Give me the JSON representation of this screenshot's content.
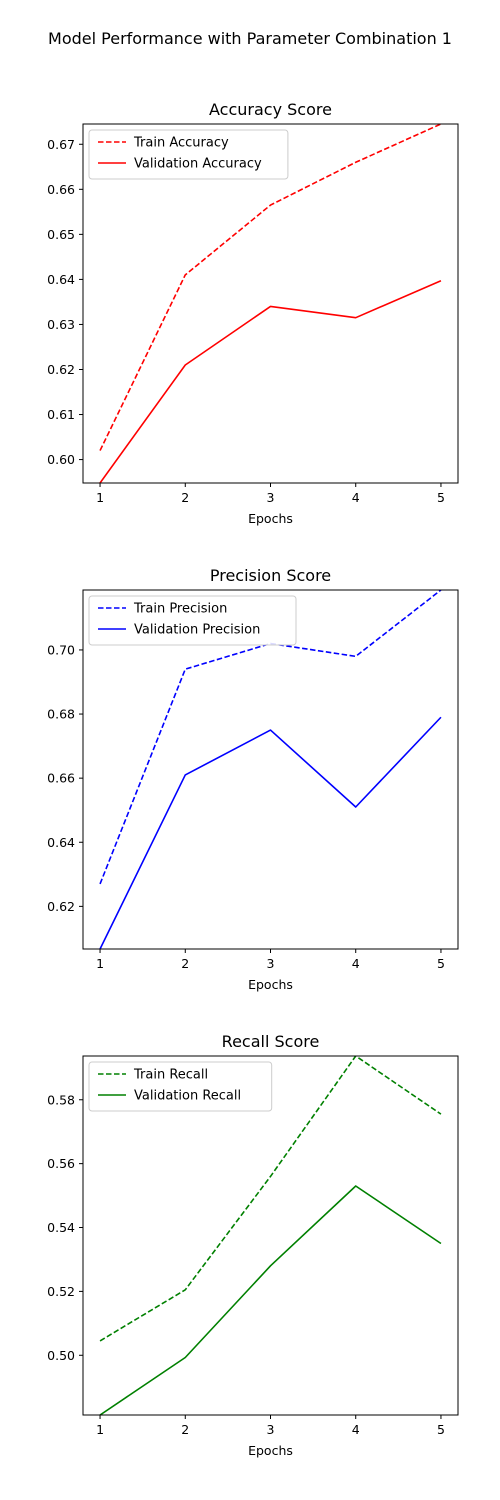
{
  "figure": {
    "title": "Model Performance with Parameter Combination 1"
  },
  "chart_data": [
    {
      "type": "line",
      "title": "Accuracy Score",
      "xlabel": "Epochs",
      "ylabel": "",
      "x": [
        1,
        2,
        3,
        4,
        5
      ],
      "xlim": [
        0.8,
        5.2
      ],
      "ylim": [
        0.5948,
        0.6745
      ],
      "yticks": [
        "0.60",
        "0.61",
        "0.62",
        "0.63",
        "0.64",
        "0.65",
        "0.66",
        "0.67"
      ],
      "ytick_values": [
        0.6,
        0.61,
        0.62,
        0.63,
        0.64,
        0.65,
        0.66,
        0.67
      ],
      "grid": false,
      "legend_position": "top-left",
      "series": [
        {
          "name": "Train Accuracy",
          "color": "#ff0000",
          "dash": true,
          "values": [
            0.602,
            0.641,
            0.6565,
            0.666,
            0.6745
          ]
        },
        {
          "name": "Validation Accuracy",
          "color": "#ff0000",
          "dash": false,
          "values": [
            0.5948,
            0.621,
            0.634,
            0.6315,
            0.6397
          ]
        }
      ]
    },
    {
      "type": "line",
      "title": "Precision Score",
      "xlabel": "Epochs",
      "ylabel": "",
      "x": [
        1,
        2,
        3,
        4,
        5
      ],
      "xlim": [
        0.8,
        5.2
      ],
      "ylim": [
        0.6067,
        0.7187
      ],
      "yticks": [
        "0.62",
        "0.64",
        "0.66",
        "0.68",
        "0.70"
      ],
      "ytick_values": [
        0.62,
        0.64,
        0.66,
        0.68,
        0.7
      ],
      "grid": false,
      "legend_position": "top-left",
      "series": [
        {
          "name": "Train Precision",
          "color": "#0000ff",
          "dash": true,
          "values": [
            0.627,
            0.694,
            0.702,
            0.698,
            0.7187
          ]
        },
        {
          "name": "Validation Precision",
          "color": "#0000ff",
          "dash": false,
          "values": [
            0.6067,
            0.661,
            0.675,
            0.651,
            0.679
          ]
        }
      ]
    },
    {
      "type": "line",
      "title": "Recall Score",
      "xlabel": "Epochs",
      "ylabel": "",
      "x": [
        1,
        2,
        3,
        4,
        5
      ],
      "xlim": [
        0.8,
        5.2
      ],
      "ylim": [
        0.4813,
        0.5937
      ],
      "yticks": [
        "0.50",
        "0.52",
        "0.54",
        "0.56",
        "0.58"
      ],
      "ytick_values": [
        0.5,
        0.52,
        0.54,
        0.56,
        0.58
      ],
      "grid": false,
      "legend_position": "top-left",
      "series": [
        {
          "name": "Train Recall",
          "color": "#008000",
          "dash": true,
          "values": [
            0.5045,
            0.5205,
            0.556,
            0.5937,
            0.5755
          ]
        },
        {
          "name": "Validation Recall",
          "color": "#008000",
          "dash": false,
          "values": [
            0.4813,
            0.4993,
            0.528,
            0.553,
            0.535
          ]
        }
      ]
    }
  ]
}
